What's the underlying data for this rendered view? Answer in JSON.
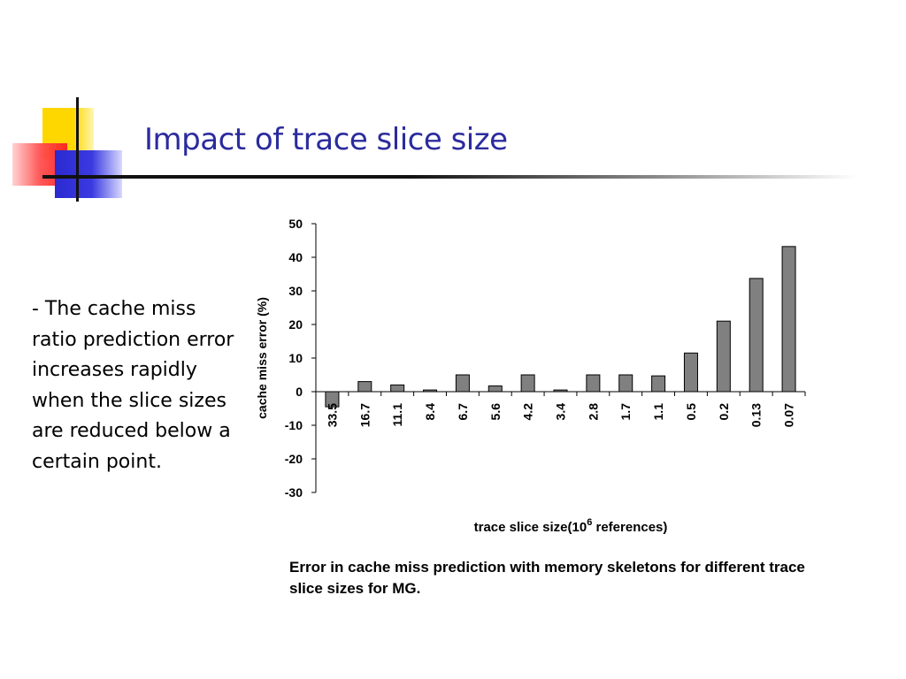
{
  "slide": {
    "title": "Impact of trace slice size",
    "bullet_text": "- The cache miss ratio prediction error increases rapidly when the slice sizes are reduced below a certain point.",
    "caption": "Error in cache miss prediction with memory skeletons for different trace slice sizes for MG."
  },
  "colors": {
    "title": "#2b2b9e",
    "bar_fill": "#808080",
    "bar_stroke": "#000000"
  },
  "chart_data": {
    "type": "bar",
    "categories": [
      "33.5",
      "16.7",
      "11.1",
      "8.4",
      "6.7",
      "5.6",
      "4.2",
      "3.4",
      "2.8",
      "1.7",
      "1.1",
      "0.5",
      "0.2",
      "0.13",
      "0.07"
    ],
    "values": [
      -4.5,
      3,
      2,
      0.5,
      5,
      1.7,
      5,
      0.5,
      5,
      5,
      4.7,
      11.5,
      21,
      33.7,
      43.2
    ],
    "ylabel": "cache miss error (%)",
    "xlabel_main": "trace slice size(10",
    "xlabel_sup": "6",
    "xlabel_tail": " references)",
    "ylim": [
      -30,
      50
    ],
    "yticks": [
      50,
      40,
      30,
      20,
      10,
      0,
      -10,
      -20,
      -30
    ],
    "grid": false,
    "legend": "none"
  }
}
